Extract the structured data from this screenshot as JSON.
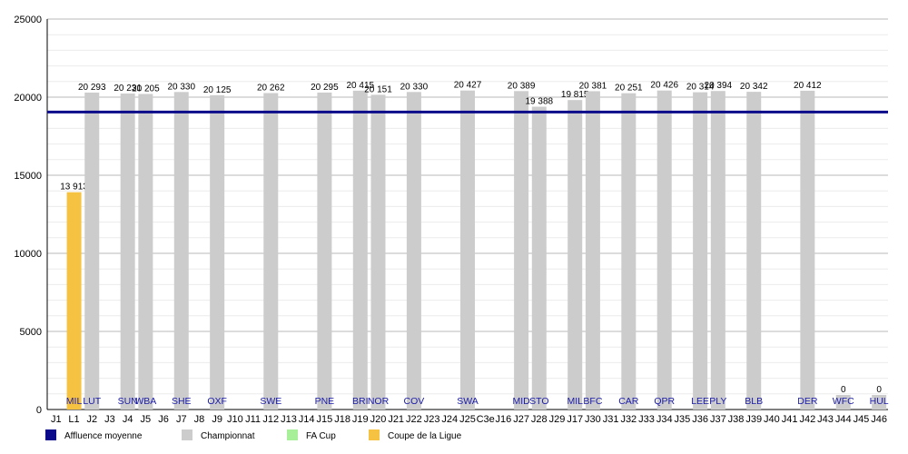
{
  "chart_data": {
    "type": "bar",
    "ylim": [
      0,
      25000
    ],
    "yticks": [
      0,
      5000,
      10000,
      15000,
      20000,
      25000
    ],
    "ytick_labels": [
      "0",
      "5000",
      "10000",
      "15000",
      "20000",
      "25000"
    ],
    "grid": true,
    "average": 19050,
    "x_labels": [
      "J1",
      "L1",
      "J2",
      "J3",
      "J4",
      "J5",
      "J6",
      "J7",
      "J8",
      "J9",
      "J10",
      "J11",
      "J12",
      "J13",
      "J14",
      "J15",
      "J18",
      "J19",
      "J20",
      "J21",
      "J22",
      "J23",
      "J24",
      "J25",
      "C3e",
      "J16",
      "J27",
      "J28",
      "J29",
      "J17",
      "J30",
      "J31",
      "J32",
      "J33",
      "J34",
      "J35",
      "J36",
      "J37",
      "J38",
      "J39",
      "J40",
      "J41",
      "J42",
      "J43",
      "J44",
      "J45",
      "J46"
    ],
    "bars": [
      {
        "slot": 1,
        "value": 13913,
        "label": "13 913",
        "opponent": "MIL",
        "kind": "ligue"
      },
      {
        "slot": 2,
        "value": 20293,
        "label": "20 293",
        "opponent": "LUT",
        "kind": "championnat"
      },
      {
        "slot": 4,
        "value": 20231,
        "label": "20 231",
        "opponent": "SUN",
        "kind": "championnat"
      },
      {
        "slot": 5,
        "value": 20205,
        "label": "20 205",
        "opponent": "WBA",
        "kind": "championnat"
      },
      {
        "slot": 7,
        "value": 20330,
        "label": "20 330",
        "opponent": "SHE",
        "kind": "championnat"
      },
      {
        "slot": 9,
        "value": 20125,
        "label": "20 125",
        "opponent": "OXF",
        "kind": "championnat"
      },
      {
        "slot": 12,
        "value": 20262,
        "label": "20 262",
        "opponent": "SWE",
        "kind": "championnat"
      },
      {
        "slot": 15,
        "value": 20295,
        "label": "20 295",
        "opponent": "PNE",
        "kind": "championnat"
      },
      {
        "slot": 17,
        "value": 20415,
        "label": "20 415",
        "opponent": "BRI",
        "kind": "championnat"
      },
      {
        "slot": 18,
        "value": 20151,
        "label": "20 151",
        "opponent": "NOR",
        "kind": "championnat"
      },
      {
        "slot": 20,
        "value": 20330,
        "label": "20 330",
        "opponent": "COV",
        "kind": "championnat"
      },
      {
        "slot": 23,
        "value": 20427,
        "label": "20 427",
        "opponent": "SWA",
        "kind": "championnat"
      },
      {
        "slot": 26,
        "value": 20389,
        "label": "20 389",
        "opponent": "MID",
        "kind": "championnat"
      },
      {
        "slot": 27,
        "value": 19388,
        "label": "19 388",
        "opponent": "STO",
        "kind": "championnat"
      },
      {
        "slot": 29,
        "value": 19815,
        "label": "19 815",
        "opponent": "MIL",
        "kind": "championnat"
      },
      {
        "slot": 30,
        "value": 20381,
        "label": "20 381",
        "opponent": "BFC",
        "kind": "championnat"
      },
      {
        "slot": 32,
        "value": 20251,
        "label": "20 251",
        "opponent": "CAR",
        "kind": "championnat"
      },
      {
        "slot": 34,
        "value": 20426,
        "label": "20 426",
        "opponent": "QPR",
        "kind": "championnat"
      },
      {
        "slot": 36,
        "value": 20314,
        "label": "20 314",
        "opponent": "LEE",
        "kind": "championnat"
      },
      {
        "slot": 37,
        "value": 20394,
        "label": "20 394",
        "opponent": "PLY",
        "kind": "championnat"
      },
      {
        "slot": 39,
        "value": 20342,
        "label": "20 342",
        "opponent": "BLB",
        "kind": "championnat"
      },
      {
        "slot": 42,
        "value": 20412,
        "label": "20 412",
        "opponent": "DER",
        "kind": "championnat"
      },
      {
        "slot": 44,
        "value": 0,
        "label": "0",
        "opponent": "WFC",
        "kind": "championnat"
      },
      {
        "slot": 46,
        "value": 0,
        "label": "0",
        "opponent": "HUL",
        "kind": "championnat"
      }
    ],
    "colors": {
      "championnat": "#cccccc",
      "ligue": "#f5c242",
      "facup": "#a8ef9a",
      "average": "#0a0a8a",
      "grid": "#dddddd",
      "category_text": "#1a1aa8"
    },
    "legend": {
      "position": "bottom",
      "items": [
        {
          "key": "average",
          "label": "Affluence moyenne"
        },
        {
          "key": "championnat",
          "label": "Championnat"
        },
        {
          "key": "facup",
          "label": "FA Cup"
        },
        {
          "key": "ligue",
          "label": "Coupe de la Ligue"
        }
      ]
    }
  }
}
